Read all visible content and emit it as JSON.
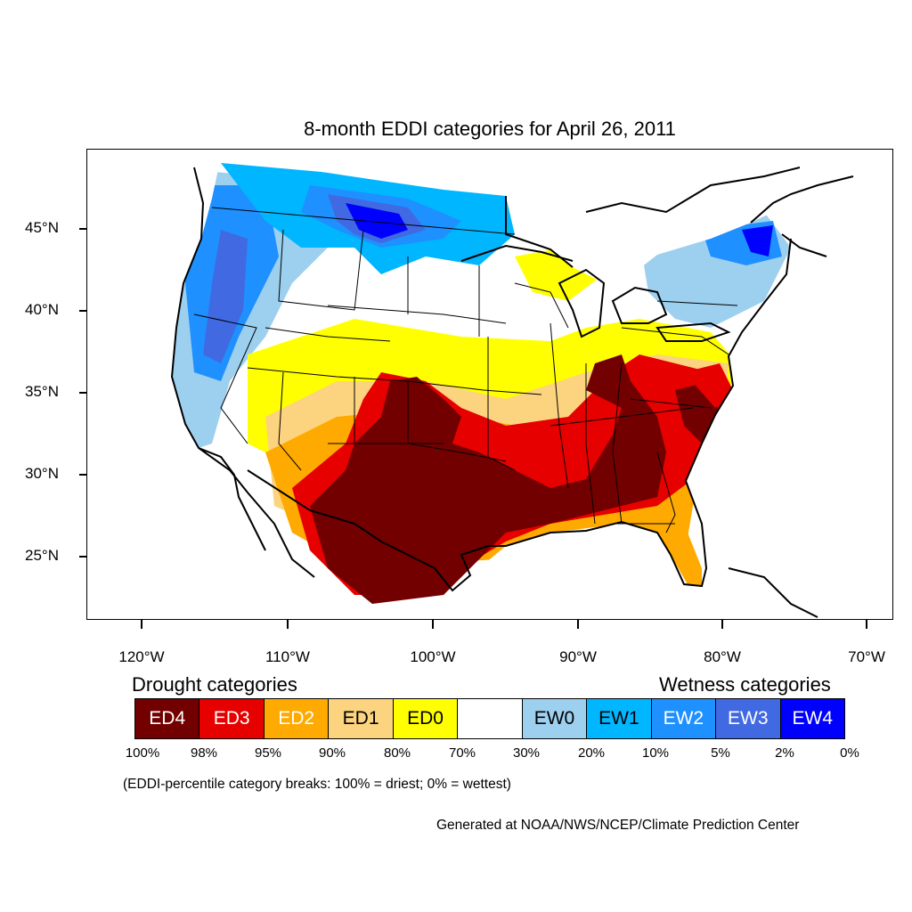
{
  "title": "8-month EDDI categories for April 26, 2011",
  "axes": {
    "y_ticks": [
      "45°N",
      "40°N",
      "35°N",
      "30°N",
      "25°N"
    ],
    "x_ticks": [
      "120°W",
      "110°W",
      "100°W",
      "90°W",
      "80°W",
      "70°W"
    ]
  },
  "legend": {
    "drought_title": "Drought categories",
    "wetness_title": "Wetness categories",
    "categories": [
      {
        "label": "ED4",
        "color": "#730000",
        "text_color": "#ffffff"
      },
      {
        "label": "ED3",
        "color": "#e60000",
        "text_color": "#ffffff"
      },
      {
        "label": "ED2",
        "color": "#ffaa00",
        "text_color": "#ffffff"
      },
      {
        "label": "ED1",
        "color": "#fcd37f",
        "text_color": "#000000"
      },
      {
        "label": "ED0",
        "color": "#ffff00",
        "text_color": "#000000"
      },
      {
        "label": "",
        "color": "#ffffff",
        "text_color": "#000000"
      },
      {
        "label": "EW0",
        "color": "#9dcfef",
        "text_color": "#000000"
      },
      {
        "label": "EW1",
        "color": "#00b6ff",
        "text_color": "#000000"
      },
      {
        "label": "EW2",
        "color": "#1e90ff",
        "text_color": "#ffffff"
      },
      {
        "label": "EW3",
        "color": "#4169e1",
        "text_color": "#ffffff"
      },
      {
        "label": "EW4",
        "color": "#0000ff",
        "text_color": "#ffffff"
      }
    ],
    "breaks": [
      "100%",
      "98%",
      "95%",
      "90%",
      "80%",
      "70%",
      "30%",
      "20%",
      "10%",
      "5%",
      "2%",
      "0%"
    ]
  },
  "note": "(EDDI-percentile category breaks: 100% = driest; 0% = wettest)",
  "credit": "Generated at NOAA/NWS/NCEP/Climate Prediction Center"
}
